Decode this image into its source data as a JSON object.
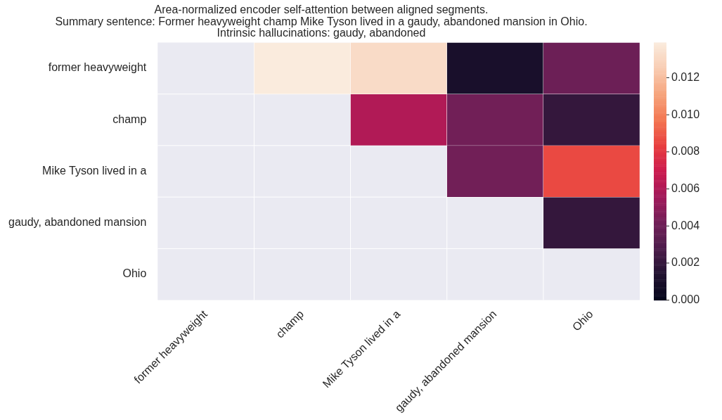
{
  "chart_data": {
    "type": "heatmap",
    "title": "Area-normalized encoder self-attention between aligned segments.\nSummary sentence: Former heavyweight champ Mike Tyson lived in a gaudy, abandoned mansion in Ohio.\nIntrinsic hallucinations: gaudy, abandoned",
    "categories": [
      "former heavyweight",
      "champ",
      "Mike Tyson lived in a",
      "gaudy, abandoned mansion",
      "Ohio"
    ],
    "y_categories": [
      "former heavyweight",
      "champ",
      "Mike Tyson lived in a",
      "gaudy, abandoned mansion",
      "Ohio"
    ],
    "cells": [
      [
        null,
        0.0139,
        0.0132,
        0.001,
        0.004
      ],
      [
        null,
        null,
        0.0061,
        0.0042,
        0.002
      ],
      [
        null,
        null,
        null,
        0.0042,
        0.0086
      ],
      [
        null,
        null,
        null,
        null,
        0.002
      ],
      [
        null,
        null,
        null,
        null,
        null
      ]
    ],
    "clim": [
      0,
      0.0139
    ],
    "cticks": [
      {
        "value": 0,
        "label": "0.000"
      },
      0.002,
      0.004,
      0.006,
      0.008,
      {
        "value": 0.01,
        "label": "0.010"
      },
      0.012
    ]
  }
}
